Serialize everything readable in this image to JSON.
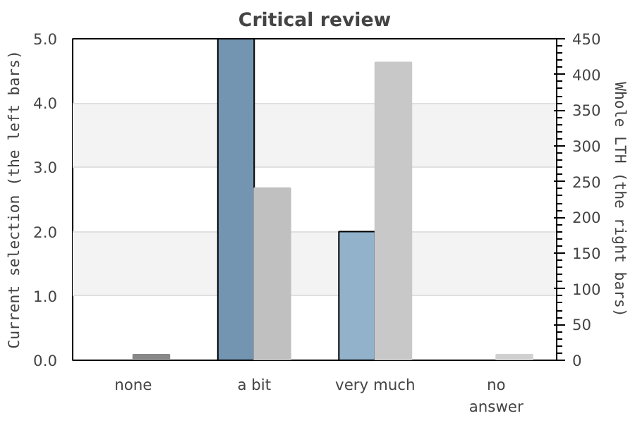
{
  "chart_data": {
    "type": "bar",
    "title": "Critical review",
    "categories": [
      "none",
      "a bit",
      "very much",
      "no answer"
    ],
    "ylabel": "Current selection (the left bars)",
    "y2label": "Whole LTH (the right bars)",
    "series": [
      {
        "colors": [
          "#7395b2",
          "#7395b2",
          "#92b2cc",
          "#92b2cc"
        ],
        "values": [
          0,
          5,
          2,
          0
        ]
      },
      {
        "colors": [
          "#888888",
          "#c0c0c0",
          "#c8c8c8",
          "#d0d0d0"
        ],
        "values": [
          8,
          241,
          417,
          8
        ],
        "axis": "y2"
      }
    ],
    "ylim": [
      0,
      5
    ],
    "yticks": [
      {
        "value": 0,
        "label": "0.0"
      },
      {
        "value": 1,
        "label": "1.0"
      },
      {
        "value": 2,
        "label": "2.0"
      },
      {
        "value": 3,
        "label": "3.0"
      },
      {
        "value": 4,
        "label": "4.0"
      },
      {
        "value": 5,
        "label": "5.0"
      }
    ],
    "y2lim": [
      0,
      450
    ],
    "y2ticks": [
      0,
      50,
      100,
      150,
      200,
      250,
      300,
      350,
      400,
      450
    ],
    "grid": "y"
  }
}
